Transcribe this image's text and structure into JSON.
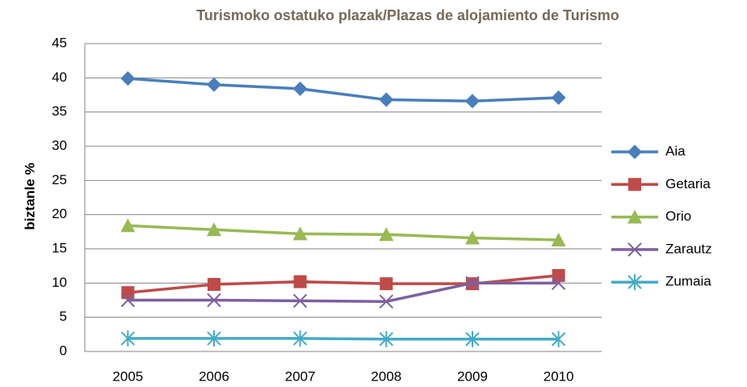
{
  "chart_data": {
    "type": "line",
    "title": "Turismoko ostatuko plazak/Plazas de alojamiento de Turismo",
    "y_label": "biztanle %",
    "categories": [
      "2005",
      "2006",
      "2007",
      "2008",
      "2009",
      "2010"
    ],
    "series": [
      {
        "name": "Aia",
        "color": "#4a7ebb",
        "marker": "diamond",
        "values": [
          39.9,
          39.0,
          38.4,
          36.8,
          36.6,
          37.1
        ]
      },
      {
        "name": "Getaria",
        "color": "#be4b48",
        "marker": "square",
        "values": [
          8.6,
          9.8,
          10.2,
          9.9,
          9.9,
          11.1
        ]
      },
      {
        "name": "Orio",
        "color": "#98b954",
        "marker": "triangle",
        "values": [
          18.4,
          17.8,
          17.2,
          17.1,
          16.6,
          16.3
        ]
      },
      {
        "name": "Zarautz",
        "color": "#7d60a0",
        "marker": "x",
        "values": [
          7.5,
          7.5,
          7.4,
          7.3,
          10.0,
          10.0
        ]
      },
      {
        "name": "Zumaia",
        "color": "#46aac5",
        "marker": "asterisk",
        "values": [
          1.9,
          1.9,
          1.9,
          1.8,
          1.8,
          1.8
        ]
      }
    ],
    "ylim": [
      0,
      45
    ],
    "yticks": [
      0,
      5,
      10,
      15,
      20,
      25,
      30,
      35,
      40,
      45
    ],
    "grid": true,
    "legend": "right"
  }
}
